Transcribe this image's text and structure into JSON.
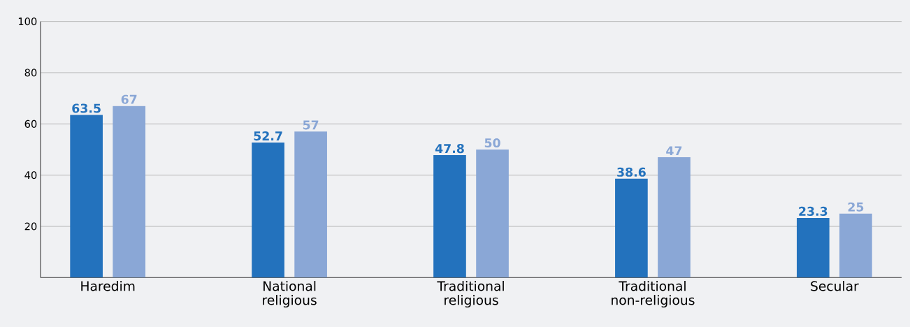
{
  "chart_data": {
    "type": "bar",
    "categories": [
      "Haredim",
      "National religious",
      "Traditional religious",
      "Traditional non-religious",
      "Secular"
    ],
    "series": [
      {
        "color": "#2372bd",
        "values": [
          63.5,
          52.7,
          47.8,
          38.6,
          23.3
        ]
      },
      {
        "color": "#8aa7d6",
        "values": [
          67,
          57,
          50,
          47,
          25
        ]
      }
    ],
    "ylim": [
      0,
      100
    ],
    "yticks": [
      20,
      40,
      60,
      80,
      100
    ],
    "grid": "y",
    "data_labels": true
  }
}
